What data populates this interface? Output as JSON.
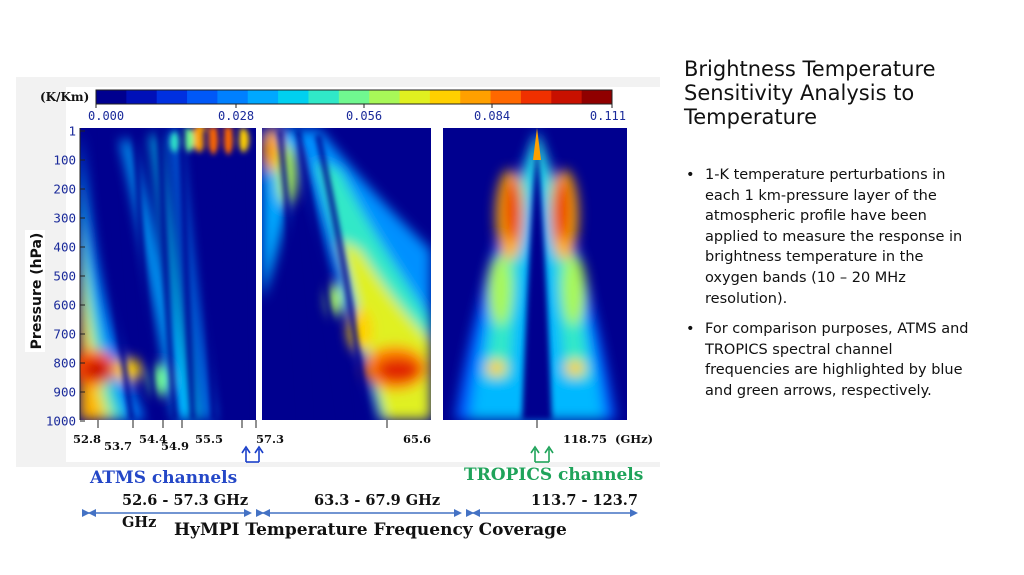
{
  "slide": {
    "title": "Brightness Temperature Sensitivity Analysis to Temperature",
    "bullets": [
      "1-K temperature perturbations in each 1 km-pressure layer of the atmospheric profile have been applied to measure the response in brightness temperature in the oxygen bands (10 – 20 MHz resolution).",
      "For comparison purposes, ATMS and TROPICS spectral channel frequencies are highlighted by blue and green arrows, respectively."
    ]
  },
  "figure": {
    "colorbar_unit": "(K/Km)",
    "colorbar_ticks": [
      "0.000",
      "0.028",
      "0.056",
      "0.084",
      "0.111"
    ],
    "colorbar_colors": [
      "#00008f",
      "#0010b8",
      "#0030e0",
      "#0058f8",
      "#0080ff",
      "#00a8ff",
      "#00d0f0",
      "#30e8c8",
      "#70f890",
      "#a8f858",
      "#e0f020",
      "#ffd000",
      "#ffa000",
      "#ff6800",
      "#f03000",
      "#c81000",
      "#900000"
    ],
    "y_axis_label": "Pressure (hPa)",
    "y_ticks": [
      "1",
      "100",
      "200",
      "300",
      "400",
      "500",
      "600",
      "700",
      "800",
      "900",
      "1000"
    ],
    "x_labels": [
      {
        "text": "52.8",
        "row": 0
      },
      {
        "text": "53.7",
        "row": 1
      },
      {
        "text": "54.4",
        "row": 0
      },
      {
        "text": "54.9",
        "row": 1
      },
      {
        "text": "55.5",
        "row": 0
      },
      {
        "text": "57.3",
        "row": 0
      },
      {
        "text": "65.6",
        "row": 0
      },
      {
        "text": "118.75",
        "row": 0
      },
      {
        "text": "(GHz)",
        "row": 0
      }
    ],
    "atms_label": "ATMS channels",
    "tropics_label": "TROPICS channels",
    "ranges": [
      "52.6 - 57.3 GHz",
      "63.3 - 67.9 GHz",
      "113.7 - 123.7"
    ],
    "range_continuation": "GHz",
    "coverage_caption": "HyMPI Temperature Frequency Coverage",
    "colors": {
      "atms": "#2447c7",
      "tropics": "#1fa35a",
      "range_arrow": "#4472c4"
    }
  }
}
